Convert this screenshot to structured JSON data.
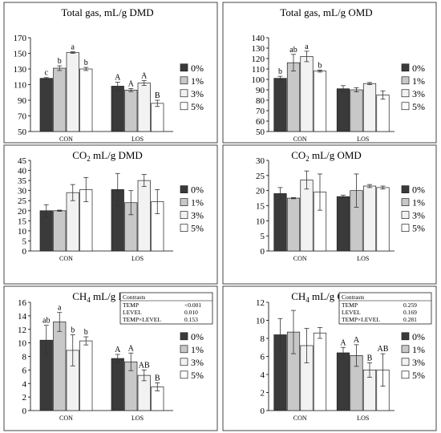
{
  "figure": {
    "colors": {
      "0%": "#3a3a3a",
      "1%": "#c8c8c8",
      "3%": "#f2f2f2",
      "5%": "#ffffff",
      "border": "#444444"
    }
  },
  "chart_data": [
    {
      "type": "bar",
      "title_prefix": "Total gas, mL/g DMD",
      "title_sub": "",
      "title_suffix": "",
      "categories": [
        "CON",
        "LOS"
      ],
      "ylim": [
        50,
        170
      ],
      "yticks": [
        50,
        70,
        90,
        110,
        130,
        150,
        170
      ],
      "series": [
        {
          "name": "0%",
          "values": [
            118,
            108
          ],
          "errors": [
            1,
            5
          ]
        },
        {
          "name": "1%",
          "values": [
            131,
            103
          ],
          "errors": [
            3,
            2
          ]
        },
        {
          "name": "3%",
          "values": [
            151,
            112
          ],
          "errors": [
            1,
            3
          ]
        },
        {
          "name": "5%",
          "values": [
            130,
            86
          ],
          "errors": [
            2,
            4
          ]
        }
      ],
      "bar_labels": [
        [
          "c",
          "b",
          "a",
          "b"
        ],
        [
          "A",
          "A",
          "A",
          "B"
        ]
      ],
      "legend": [
        "0%",
        "1%",
        "3%",
        "5%"
      ],
      "legend_position": "right"
    },
    {
      "type": "bar",
      "title_prefix": "Total gas, mL/g OMD",
      "title_sub": "",
      "title_suffix": "",
      "categories": [
        "CON",
        "LOS"
      ],
      "ylim": [
        50,
        140
      ],
      "yticks": [
        50,
        60,
        70,
        80,
        90,
        100,
        110,
        120,
        130,
        140
      ],
      "series": [
        {
          "name": "0%",
          "values": [
            101,
            91
          ],
          "errors": [
            2,
            3
          ]
        },
        {
          "name": "1%",
          "values": [
            116,
            90
          ],
          "errors": [
            8,
            2
          ]
        },
        {
          "name": "3%",
          "values": [
            122,
            96
          ],
          "errors": [
            5,
            1
          ]
        },
        {
          "name": "5%",
          "values": [
            108,
            85
          ],
          "errors": [
            1,
            4
          ]
        }
      ],
      "bar_labels": [
        [
          "b",
          "ab",
          "a",
          "b"
        ],
        [
          "",
          "",
          "",
          ""
        ]
      ],
      "legend": [
        "0%",
        "1%",
        "3%",
        "5%"
      ],
      "legend_position": "right"
    },
    {
      "type": "bar",
      "title_prefix": "CO",
      "title_sub": "2",
      "title_suffix": " mL/g DMD",
      "categories": [
        "CON",
        "LOS"
      ],
      "ylim": [
        0,
        45
      ],
      "yticks": [
        0,
        5,
        10,
        15,
        20,
        25,
        30,
        35,
        40,
        45
      ],
      "series": [
        {
          "name": "0%",
          "values": [
            20,
            30.5
          ],
          "errors": [
            3,
            8
          ]
        },
        {
          "name": "1%",
          "values": [
            20,
            24
          ],
          "errors": [
            0.3,
            6
          ]
        },
        {
          "name": "3%",
          "values": [
            29,
            35
          ],
          "errors": [
            4,
            3
          ]
        },
        {
          "name": "5%",
          "values": [
            30.5,
            24.5
          ],
          "errors": [
            6,
            6
          ]
        }
      ],
      "bar_labels": [
        [
          "",
          "",
          "",
          ""
        ],
        [
          "",
          "",
          "",
          ""
        ]
      ],
      "legend": [
        "0%",
        "1%",
        "3%",
        "5%"
      ],
      "legend_position": "right"
    },
    {
      "type": "bar",
      "title_prefix": "CO",
      "title_sub": "2",
      "title_suffix": " mL/g OMD",
      "categories": [
        "CON",
        "LOS"
      ],
      "ylim": [
        0,
        30
      ],
      "yticks": [
        0,
        5,
        10,
        15,
        20,
        25,
        30
      ],
      "series": [
        {
          "name": "0%",
          "values": [
            19,
            18
          ],
          "errors": [
            2,
            0.5
          ]
        },
        {
          "name": "1%",
          "values": [
            17.5,
            20
          ],
          "errors": [
            0.2,
            5.5
          ]
        },
        {
          "name": "3%",
          "values": [
            23.5,
            21.5
          ],
          "errors": [
            3,
            0.5
          ]
        },
        {
          "name": "5%",
          "values": [
            19.5,
            21
          ],
          "errors": [
            6,
            0.5
          ]
        }
      ],
      "bar_labels": [
        [
          "",
          "",
          "",
          ""
        ],
        [
          "",
          "",
          "",
          ""
        ]
      ],
      "legend": [
        "0%",
        "1%",
        "3%",
        "5%"
      ],
      "legend_position": "right"
    },
    {
      "type": "bar",
      "title_prefix": "CH",
      "title_sub": "4",
      "title_suffix": " mL/g DMD",
      "categories": [
        "CON",
        "LOS"
      ],
      "ylim": [
        0,
        16
      ],
      "yticks": [
        0,
        2,
        4,
        6,
        8,
        10,
        12,
        14,
        16
      ],
      "series": [
        {
          "name": "0%",
          "values": [
            10.4,
            7.7
          ],
          "errors": [
            2.2,
            0.6
          ]
        },
        {
          "name": "1%",
          "values": [
            13.1,
            7.2
          ],
          "errors": [
            1.4,
            1.3
          ]
        },
        {
          "name": "3%",
          "values": [
            8.9,
            5.2
          ],
          "errors": [
            2.3,
            0.8
          ]
        },
        {
          "name": "5%",
          "values": [
            10.3,
            3.5
          ],
          "errors": [
            0.6,
            0.6
          ]
        }
      ],
      "bar_labels": [
        [
          "ab",
          "a",
          "b",
          "b"
        ],
        [
          "A",
          "A",
          "AB",
          "B"
        ]
      ],
      "legend": [
        "0%",
        "1%",
        "3%",
        "5%"
      ],
      "legend_position": "right",
      "contrasts": {
        "header": "Contrasts",
        "rows": [
          [
            "TEMP",
            "<0.001"
          ],
          [
            "LEVEL",
            "0.010"
          ],
          [
            "TEMP×LEVEL",
            "0.153"
          ]
        ]
      }
    },
    {
      "type": "bar",
      "title_prefix": "CH",
      "title_sub": "4",
      "title_suffix": " mL/g OMD",
      "categories": [
        "CON",
        "LOS"
      ],
      "ylim": [
        0,
        12
      ],
      "yticks": [
        0,
        2,
        4,
        6,
        8,
        10,
        12
      ],
      "series": [
        {
          "name": "0%",
          "values": [
            8.4,
            6.4
          ],
          "errors": [
            1.8,
            0.6
          ]
        },
        {
          "name": "1%",
          "values": [
            8.7,
            6.1
          ],
          "errors": [
            2.4,
            1.2
          ]
        },
        {
          "name": "3%",
          "values": [
            7.2,
            4.5
          ],
          "errors": [
            1.9,
            0.8
          ]
        },
        {
          "name": "5%",
          "values": [
            8.6,
            4.5
          ],
          "errors": [
            0.6,
            1.8
          ]
        }
      ],
      "bar_labels": [
        [
          "",
          "",
          "",
          ""
        ],
        [
          "A",
          "A",
          "B",
          "AB"
        ]
      ],
      "legend": [
        "0%",
        "1%",
        "3%",
        "5%"
      ],
      "legend_position": "right",
      "contrasts": {
        "header": "Contrasts",
        "rows": [
          [
            "TEMP",
            "0.259"
          ],
          [
            "LEVEL",
            "0.169"
          ],
          [
            "TEMP×LEVEL",
            "0.281"
          ]
        ]
      }
    }
  ]
}
